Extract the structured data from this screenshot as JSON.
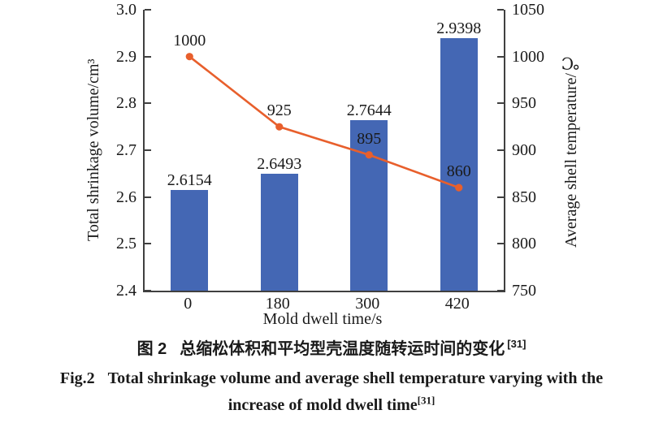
{
  "chart_data": {
    "type": "bar",
    "title": "",
    "categories": [
      "0",
      "180",
      "300",
      "420"
    ],
    "series": [
      {
        "name": "Total shrinkage volume",
        "type": "bar",
        "axis": "left",
        "values": [
          2.6154,
          2.6493,
          2.7644,
          2.9398
        ],
        "labels": [
          "2.6154",
          "2.6493",
          "2.7644",
          "2.9398"
        ],
        "color": "#4467b4"
      },
      {
        "name": "Average shell temperature",
        "type": "line",
        "axis": "right",
        "values": [
          1000,
          925,
          895,
          860
        ],
        "labels": [
          "1000",
          "925",
          "895",
          "860"
        ],
        "color": "#e85f2c"
      }
    ],
    "xlabel": "Mold dwell time/s",
    "left_axis": {
      "label": "Total shrinkage volume/cm³",
      "min": 2.4,
      "max": 3.0,
      "tick_values": [
        2.4,
        2.5,
        2.6,
        2.7,
        2.8,
        2.9,
        3.0
      ],
      "tick_labels": [
        "2.4",
        "2.5",
        "2.6",
        "2.7",
        "2.8",
        "2.9",
        "3.0"
      ]
    },
    "right_axis": {
      "label": "Average shell temperature/℃",
      "min": 750,
      "max": 1050,
      "tick_values": [
        750,
        800,
        850,
        900,
        950,
        1000,
        1050
      ],
      "tick_labels": [
        "750",
        "800",
        "850",
        "900",
        "950",
        "1000",
        "1050"
      ]
    },
    "grid": false,
    "legend": "none"
  },
  "caption": {
    "zh_fig": "图 2",
    "zh_text": "总缩松体积和平均型壳温度随转运时间的变化",
    "zh_ref": "[31]",
    "en_fig": "Fig.2",
    "en_line1": "Total shrinkage volume and average shell temperature varying with the",
    "en_line2": "increase of mold dwell time",
    "en_ref": "[31]"
  },
  "colors": {
    "bar": "#4467b4",
    "line": "#e85f2c",
    "text": "#1a1a1a",
    "axis": "#404040"
  }
}
